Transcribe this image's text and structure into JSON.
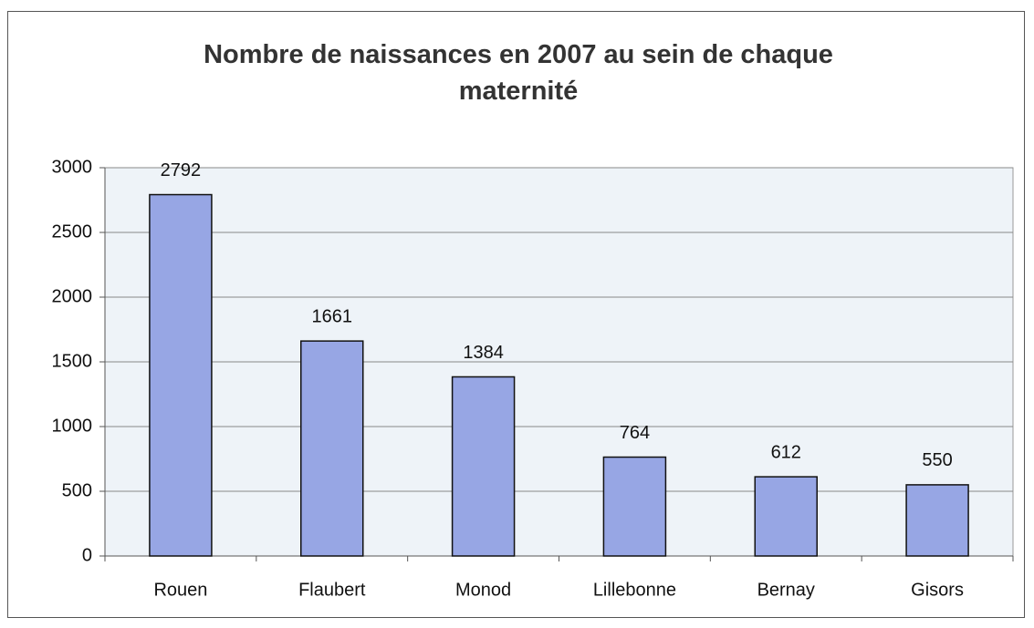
{
  "chart_data": {
    "type": "bar",
    "title": "Nombre de naissances en 2007 au sein de chaque maternité",
    "categories": [
      "Rouen",
      "Flaubert",
      "Monod",
      "Lillebonne",
      "Bernay",
      "Gisors"
    ],
    "values": [
      2792,
      1661,
      1384,
      764,
      612,
      550
    ],
    "color": "#97a6e4",
    "ylim": [
      0,
      3000
    ],
    "yticks": [
      0,
      500,
      1000,
      1500,
      2000,
      2500,
      3000
    ],
    "grid": true
  }
}
